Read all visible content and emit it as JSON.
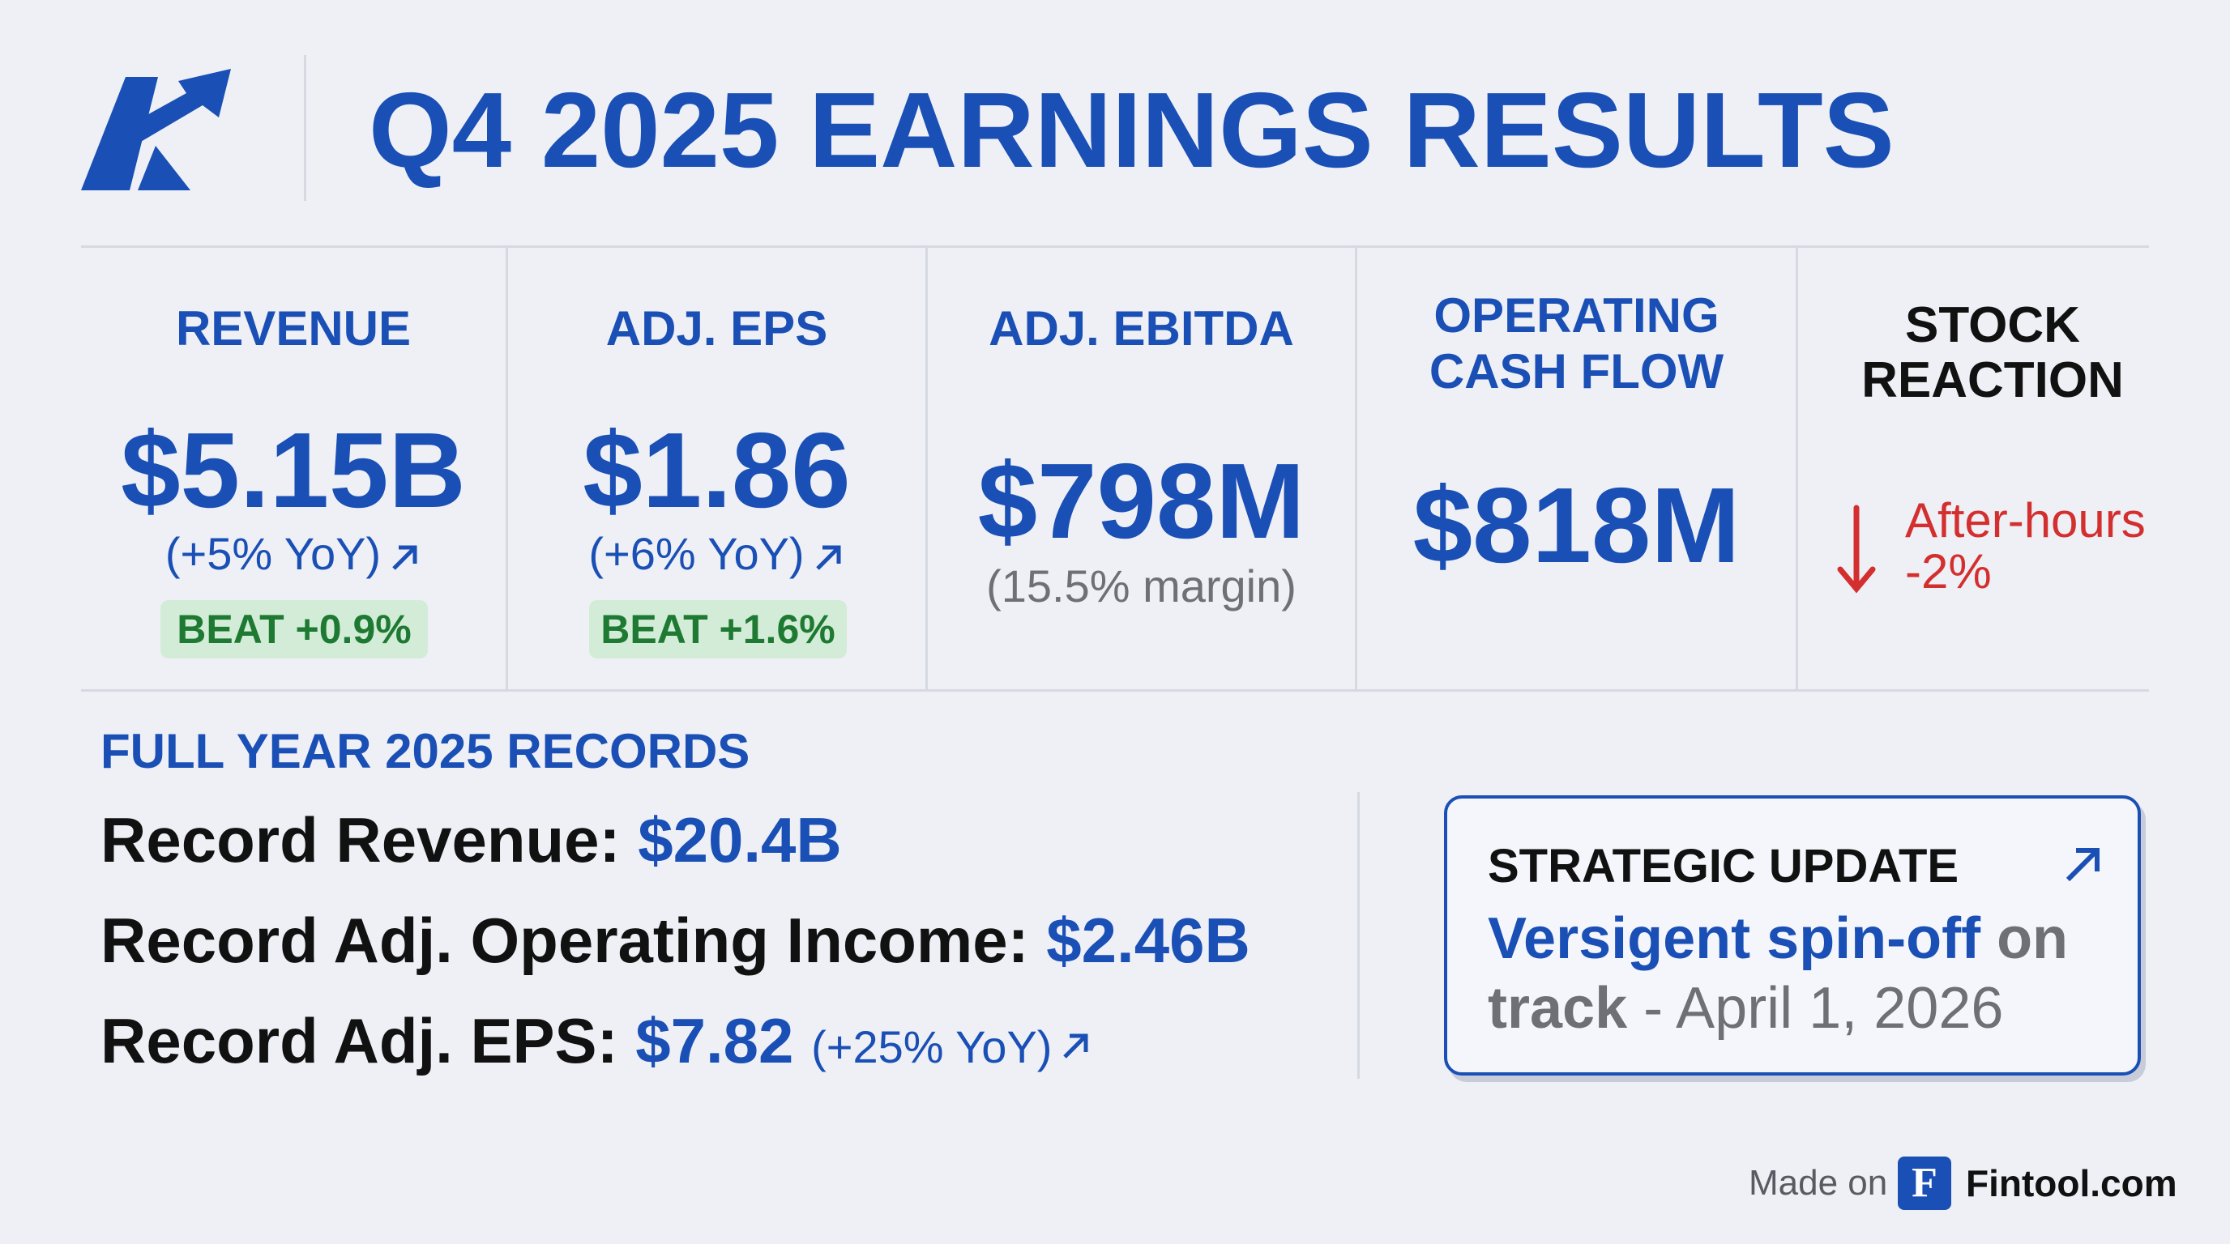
{
  "header": {
    "logo_icon": "ak-arrow-logo",
    "title": "Q4 2025 EARNINGS RESULTS"
  },
  "colors": {
    "accent": "#1a4fb5",
    "beat_text": "#1e7a32",
    "beat_bg": "#d3ecd8",
    "negative": "#d42f2f",
    "background": "#eef0f6"
  },
  "kpis": [
    {
      "label": "REVENUE",
      "value": "$5.15B",
      "change": "(+5% YoY)",
      "change_icon": "arrow-up-right-icon",
      "beat": "BEAT +0.9%"
    },
    {
      "label": "ADJ. EPS",
      "value": "$1.86",
      "change": "(+6% YoY)",
      "change_icon": "arrow-up-right-icon",
      "beat": "BEAT +1.6%"
    },
    {
      "label": "ADJ. EBITDA",
      "value": "$798M",
      "sub": "(15.5% margin)"
    },
    {
      "label_lines": [
        "OPERATING",
        "CASH FLOW"
      ],
      "value": "$818M"
    }
  ],
  "stock": {
    "label_lines": [
      "STOCK",
      "REACTION"
    ],
    "icon": "arrow-down-icon",
    "text_lines": [
      "After-hours",
      "-2%"
    ]
  },
  "full_year": {
    "title": "FULL YEAR 2025 RECORDS",
    "rows": [
      {
        "label": "Record Revenue: ",
        "value": "$20.4B"
      },
      {
        "label": "Record Adj. Operating Income: ",
        "value": "$2.46B"
      },
      {
        "label": "Record Adj. EPS: ",
        "value": "$7.82",
        "change": "(+25% YoY)",
        "change_icon": "arrow-up-right-icon"
      }
    ]
  },
  "strategic": {
    "title": "STRATEGIC UPDATE",
    "icon": "arrow-up-right-icon",
    "highlight": "Versigent spin-off",
    "grey": " on track",
    "date": " - April 1, 2026"
  },
  "footer": {
    "made_on": "Made on",
    "badge": "F",
    "brand": "Fintool.com"
  }
}
